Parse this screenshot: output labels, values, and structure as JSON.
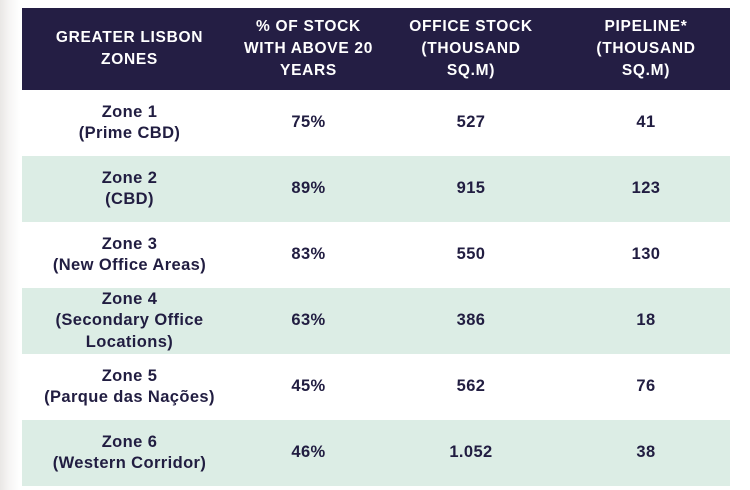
{
  "colors": {
    "header_bg": "#241e44",
    "header_text": "#ffffff",
    "row_alt_bg": "#dcede5",
    "body_text": "#211d41",
    "page_bg": "#ffffff"
  },
  "table": {
    "columns": [
      "GREATER LISBON\nZONES",
      "% OF STOCK\nWITH ABOVE 20\nYEARS",
      "OFFICE STOCK\n(THOUSAND\nSQ.M)",
      "PIPELINE*\n(THOUSAND\nSQ.M)"
    ],
    "rows": [
      {
        "zone": "Zone 1",
        "subtitle": "(Prime CBD)",
        "pct_above_20y": "75%",
        "office_stock": "527",
        "pipeline": "41"
      },
      {
        "zone": "Zone 2",
        "subtitle": "(CBD)",
        "pct_above_20y": "89%",
        "office_stock": "915",
        "pipeline": "123"
      },
      {
        "zone": "Zone 3",
        "subtitle": "(New Office Areas)",
        "pct_above_20y": "83%",
        "office_stock": "550",
        "pipeline": "130"
      },
      {
        "zone": "Zone 4",
        "subtitle": "(Secondary Office\nLocations)",
        "pct_above_20y": "63%",
        "office_stock": "386",
        "pipeline": "18"
      },
      {
        "zone": "Zone 5",
        "subtitle": "(Parque das Nações)",
        "pct_above_20y": "45%",
        "office_stock": "562",
        "pipeline": "76"
      },
      {
        "zone": "Zone 6",
        "subtitle": "(Western Corridor)",
        "pct_above_20y": "46%",
        "office_stock": "1.052",
        "pipeline": "38"
      }
    ]
  },
  "chart_data": {
    "type": "table",
    "title": "Greater Lisbon Zones office stock table",
    "columns": [
      "Greater Lisbon Zones",
      "% of stock with above 20 years",
      "Office stock (thousand sq.m)",
      "Pipeline* (thousand sq.m)"
    ],
    "rows": [
      [
        "Zone 1 (Prime CBD)",
        "75%",
        527,
        41
      ],
      [
        "Zone 2 (CBD)",
        "89%",
        915,
        123
      ],
      [
        "Zone 3 (New Office Areas)",
        "83%",
        550,
        130
      ],
      [
        "Zone 4 (Secondary Office Locations)",
        "63%",
        386,
        18
      ],
      [
        "Zone 5 (Parque das Nações)",
        "45%",
        562,
        76
      ],
      [
        "Zone 6 (Western Corridor)",
        "46%",
        1052,
        38
      ]
    ],
    "layout_hints": {
      "header_style": "dark navy background, white uppercase bold text",
      "row_striping": "white / light mint alternating",
      "value_format_note": "1.052 uses period as thousands separator"
    }
  }
}
